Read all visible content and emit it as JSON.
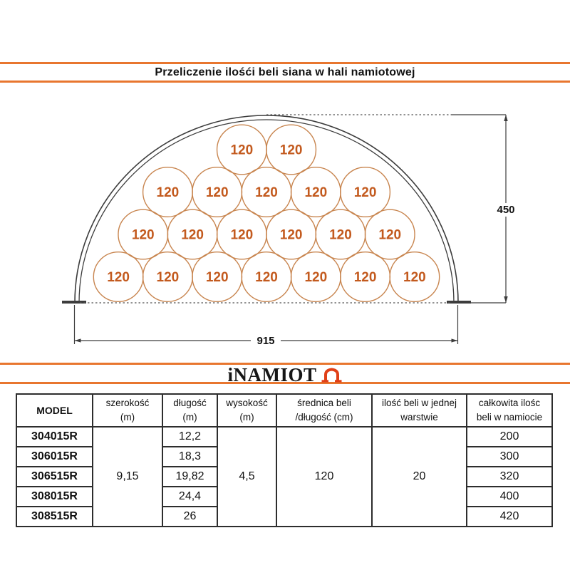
{
  "title": "Przeliczenie ilośći beli siana w hali namiotowej",
  "logo": {
    "text": "iNAMIOT",
    "icon": "tent-arch-icon"
  },
  "colors": {
    "accent_orange": "#e8762f",
    "logo_red": "#e04018",
    "bale_stroke": "#c8854f",
    "bale_text": "#c35a1e",
    "drawing_dark": "#3c3c3c"
  },
  "diagram": {
    "bale_label": "120",
    "bale_rows_top_to_bottom": [
      2,
      5,
      6,
      7
    ],
    "bales_total_per_layer": 20,
    "height_label": "450",
    "width_label": "915"
  },
  "table": {
    "headers": [
      {
        "line1": "MODEL",
        "line2": ""
      },
      {
        "line1": "szerokość",
        "line2": "(m)"
      },
      {
        "line1": "długość",
        "line2": "(m)"
      },
      {
        "line1": "wysokość",
        "line2": "(m)"
      },
      {
        "line1": "średnica beli",
        "line2": "/długość (cm)"
      },
      {
        "line1": "ilość beli w jednej",
        "line2": "warstwie"
      },
      {
        "line1": "całkowita ilośc",
        "line2": "beli w namiocie"
      }
    ],
    "merged": {
      "szerokosc": "9,15",
      "wysokosc": "4,5",
      "srednica": "120",
      "ilosc_warstwa": "20"
    },
    "rows": [
      {
        "model": "304015R",
        "dlugosc": "12,2",
        "calkowita": "200"
      },
      {
        "model": "306015R",
        "dlugosc": "18,3",
        "calkowita": "300"
      },
      {
        "model": "306515R",
        "dlugosc": "19,82",
        "calkowita": "320"
      },
      {
        "model": "308015R",
        "dlugosc": "24,4",
        "calkowita": "400"
      },
      {
        "model": "308515R",
        "dlugosc": "26",
        "calkowita": "420"
      }
    ]
  }
}
